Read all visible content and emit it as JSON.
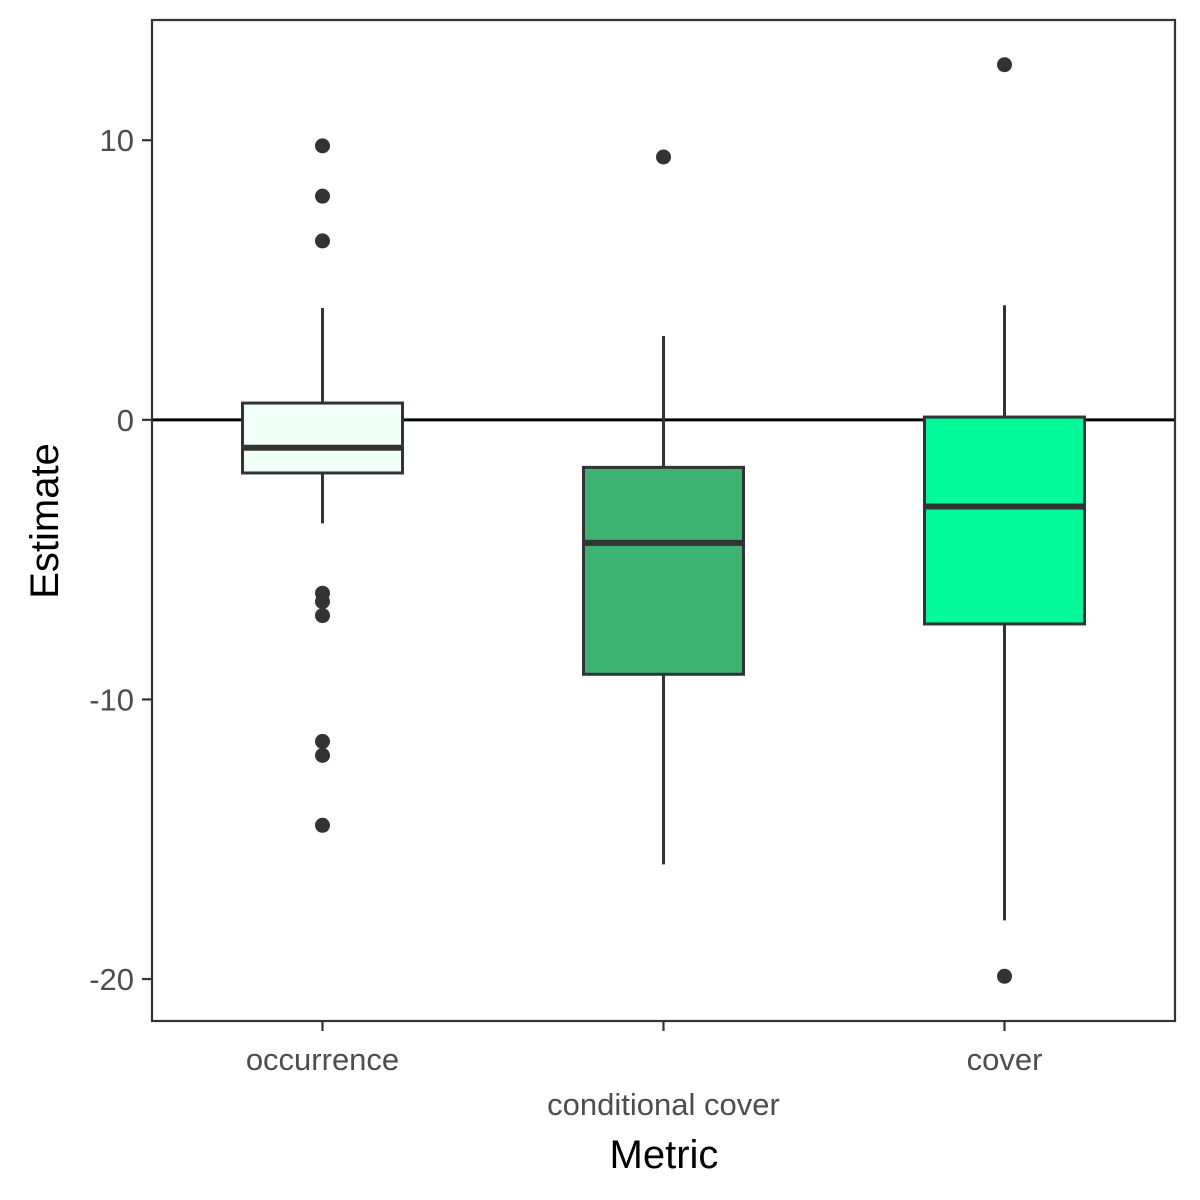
{
  "chart_data": {
    "type": "boxplot",
    "xlabel": "Metric",
    "ylabel": "Estimate",
    "ylim": [
      -21.5,
      14.3
    ],
    "yticks": [
      10,
      0,
      -10,
      -20
    ],
    "ytick_labels": [
      "10",
      "0",
      "-10",
      "-20"
    ],
    "reference_line": 0,
    "grid": false,
    "categories": [
      "occurrence",
      "conditional cover",
      "cover"
    ],
    "boxes": [
      {
        "category": "occurrence",
        "fill": "#F0FFF8",
        "whisker_low": -3.7,
        "q1": -1.9,
        "median": -1.0,
        "q3": 0.6,
        "whisker_high": 4.0,
        "outliers": [
          9.8,
          8.0,
          6.4,
          -6.2,
          -6.5,
          -7.0,
          -11.5,
          -12.0,
          -14.5
        ]
      },
      {
        "category": "conditional cover",
        "fill": "#3CB371",
        "whisker_low": -15.9,
        "q1": -9.1,
        "median": -4.4,
        "q3": -1.7,
        "whisker_high": 3.0,
        "outliers": [
          9.4
        ]
      },
      {
        "category": "cover",
        "fill": "#00FA9A",
        "whisker_low": -17.9,
        "q1": -7.3,
        "median": -3.1,
        "q3": 0.1,
        "whisker_high": 4.1,
        "outliers": [
          12.7,
          -19.9
        ]
      }
    ]
  }
}
